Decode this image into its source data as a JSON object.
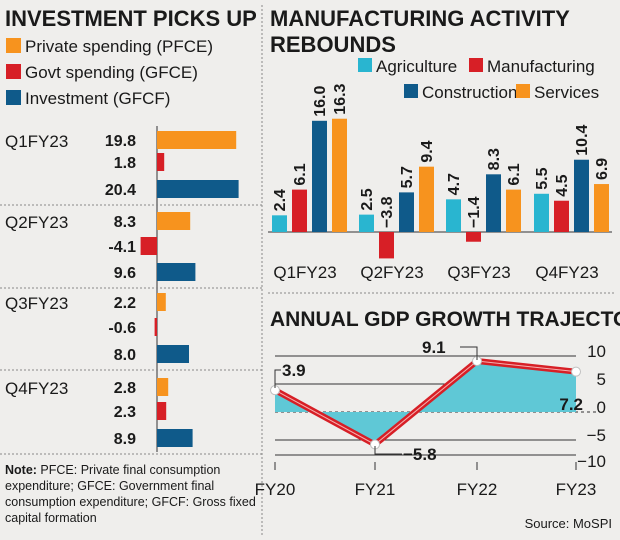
{
  "colors": {
    "private": "#f7931e",
    "govt": "#d71f26",
    "investment": "#0f5a8a",
    "agriculture": "#29b5d0",
    "manufacturing": "#d71f26",
    "construction": "#0f5a8a",
    "services": "#f7931e",
    "gdp_line": "#d71f26",
    "gdp_area": "#5fc8d6"
  },
  "chart_data": [
    {
      "type": "bar",
      "orientation": "horizontal",
      "title": "INVESTMENT PICKS UP",
      "categories": [
        "Q1FY23",
        "Q2FY23",
        "Q3FY23",
        "Q4FY23"
      ],
      "series": [
        {
          "name": "Private spending (PFCE)",
          "values": [
            19.8,
            8.3,
            2.2,
            2.8
          ]
        },
        {
          "name": "Govt spending (GFCE)",
          "values": [
            1.8,
            -4.1,
            -0.6,
            2.3
          ]
        },
        {
          "name": "Investment (GFCF)",
          "values": [
            20.4,
            9.6,
            8.0,
            8.9
          ]
        }
      ],
      "labels": [
        [
          "19.8",
          "1.8",
          "20.4"
        ],
        [
          "8.3",
          "-4.1",
          "9.6"
        ],
        [
          "2.2",
          "-0.6",
          "8.0"
        ],
        [
          "2.8",
          "2.3",
          "8.9"
        ]
      ],
      "legend": "top"
    },
    {
      "type": "bar",
      "title": [
        "MANUFACTURING ACTIVITY",
        "REBOUNDS"
      ],
      "categories": [
        "Q1FY23",
        "Q2FY23",
        "Q3FY23",
        "Q4FY23"
      ],
      "series": [
        {
          "name": "Agriculture",
          "values": [
            2.4,
            2.5,
            4.7,
            5.5
          ],
          "labels": [
            "2.4",
            "2.5",
            "4.7",
            "5.5"
          ]
        },
        {
          "name": "Manufacturing",
          "values": [
            6.1,
            -3.8,
            -1.4,
            4.5
          ],
          "labels": [
            "6.1",
            "−3.8",
            "−1.4",
            "4.5"
          ]
        },
        {
          "name": "Construction",
          "values": [
            16.0,
            5.7,
            8.3,
            10.4
          ],
          "labels": [
            "16.0",
            "5.7",
            "8.3",
            "10.4"
          ]
        },
        {
          "name": "Services",
          "values": [
            16.3,
            9.4,
            6.1,
            6.9
          ],
          "labels": [
            "16.3",
            "9.4",
            "6.1",
            "6.9"
          ]
        }
      ],
      "legend": "top"
    },
    {
      "type": "area",
      "title": "ANNUAL GDP GROWTH TRAJECTORY",
      "categories": [
        "FY20",
        "FY21",
        "FY22",
        "FY23"
      ],
      "values": [
        3.9,
        -5.8,
        9.1,
        7.2
      ],
      "labels": [
        "3.9",
        "−5.8",
        "9.1",
        "7.2"
      ],
      "yticks": [
        "10",
        "5",
        "0",
        "-5",
        "-10"
      ],
      "ylim": [
        -10,
        10
      ],
      "grid": true
    }
  ],
  "note": {
    "bold": "Note:",
    "text": " PFCE: Private final consumption expenditure; GFCE: Government final consumption expenditure; GFCF: Gross fixed capital formation"
  },
  "source": "Source: MoSPI"
}
